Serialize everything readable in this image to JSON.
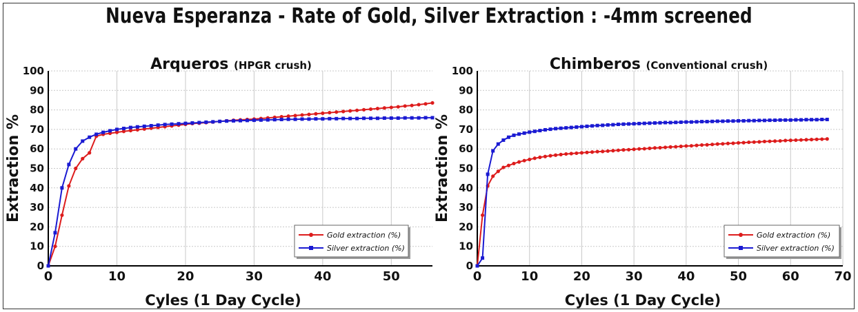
{
  "title": "Nueva Esperanza - Rate of Gold, Silver Extraction : -4mm screened",
  "colors": {
    "gold": "#dd1c1c",
    "silver": "#1a1ad2",
    "grid": "#c8c8c8"
  },
  "chart_data": [
    {
      "type": "line",
      "title": "Arqueros",
      "subtitle": "(HPGR crush)",
      "xlabel": "Cyles (1 Day Cycle)",
      "ylabel": "Extraction %",
      "xlim": [
        0,
        56
      ],
      "ylim": [
        0,
        100
      ],
      "xticks": [
        0,
        10,
        20,
        30,
        40,
        50
      ],
      "yticks": [
        0,
        10,
        20,
        30,
        40,
        50,
        60,
        70,
        80,
        90,
        100
      ],
      "grid": true,
      "legend_position": "bottom-right",
      "series": [
        {
          "name": "Gold extraction (%)",
          "color": "#dd1c1c",
          "marker": "circle",
          "x": [
            0,
            1,
            2,
            3,
            4,
            5,
            6,
            7,
            8,
            9,
            10,
            11,
            12,
            13,
            14,
            15,
            16,
            17,
            18,
            19,
            20,
            21,
            22,
            23,
            24,
            25,
            26,
            27,
            28,
            29,
            30,
            31,
            32,
            33,
            34,
            35,
            36,
            37,
            38,
            39,
            40,
            41,
            42,
            43,
            44,
            45,
            46,
            47,
            48,
            49,
            50,
            51,
            52,
            53,
            54,
            55,
            56
          ],
          "y": [
            0,
            10,
            26,
            41,
            50,
            55,
            58,
            66.5,
            67.5,
            68,
            68.5,
            69,
            69.4,
            69.8,
            70.2,
            70.6,
            71,
            71.4,
            71.8,
            72.2,
            72.6,
            73,
            73.2,
            73.5,
            73.8,
            74.1,
            74.4,
            74.7,
            74.9,
            75.1,
            75.3,
            75.6,
            75.9,
            76.2,
            76.5,
            76.8,
            77.1,
            77.4,
            77.7,
            78,
            78.3,
            78.6,
            78.9,
            79.2,
            79.5,
            79.8,
            80.1,
            80.4,
            80.7,
            81,
            81.3,
            81.6,
            82,
            82.3,
            82.7,
            83.1,
            83.6
          ]
        },
        {
          "name": "Silver extraction (%)",
          "color": "#1a1ad2",
          "marker": "square",
          "x": [
            0,
            1,
            2,
            3,
            4,
            5,
            6,
            7,
            8,
            9,
            10,
            11,
            12,
            13,
            14,
            15,
            16,
            17,
            18,
            19,
            20,
            21,
            22,
            23,
            24,
            25,
            26,
            27,
            28,
            29,
            30,
            31,
            32,
            33,
            34,
            35,
            36,
            37,
            38,
            39,
            40,
            41,
            42,
            43,
            44,
            45,
            46,
            47,
            48,
            49,
            50,
            51,
            52,
            53,
            54,
            55,
            56
          ],
          "y": [
            0,
            17,
            40,
            52,
            60,
            64,
            66,
            67.5,
            68.5,
            69.3,
            70,
            70.5,
            71,
            71.3,
            71.6,
            71.9,
            72.2,
            72.5,
            72.7,
            72.9,
            73.1,
            73.3,
            73.5,
            73.7,
            73.9,
            74.1,
            74.3,
            74.4,
            74.5,
            74.6,
            74.7,
            74.8,
            74.9,
            75,
            75.1,
            75.2,
            75.2,
            75.3,
            75.3,
            75.4,
            75.4,
            75.5,
            75.5,
            75.6,
            75.6,
            75.6,
            75.7,
            75.7,
            75.7,
            75.8,
            75.8,
            75.8,
            75.9,
            75.9,
            75.9,
            76,
            76
          ]
        }
      ]
    },
    {
      "type": "line",
      "title": "Chimberos",
      "subtitle": "(Conventional crush)",
      "xlabel": "Cyles (1 Day Cycle)",
      "ylabel": "Extraction %",
      "xlim": [
        0,
        70
      ],
      "ylim": [
        0,
        100
      ],
      "xticks": [
        0,
        10,
        20,
        30,
        40,
        50,
        60,
        70
      ],
      "yticks": [
        0,
        10,
        20,
        30,
        40,
        50,
        60,
        70,
        80,
        90,
        100
      ],
      "grid": true,
      "legend_position": "bottom-right",
      "series": [
        {
          "name": "Gold extraction (%)",
          "color": "#dd1c1c",
          "marker": "circle",
          "x": [
            0,
            1,
            2,
            3,
            4,
            5,
            6,
            7,
            8,
            9,
            10,
            11,
            12,
            13,
            14,
            15,
            16,
            17,
            18,
            19,
            20,
            21,
            22,
            23,
            24,
            25,
            26,
            27,
            28,
            29,
            30,
            31,
            32,
            33,
            34,
            35,
            36,
            37,
            38,
            39,
            40,
            41,
            42,
            43,
            44,
            45,
            46,
            47,
            48,
            49,
            50,
            51,
            52,
            53,
            54,
            55,
            56,
            57,
            58,
            59,
            60,
            61,
            62,
            63,
            64,
            65,
            66,
            67
          ],
          "y": [
            0,
            26,
            41,
            46,
            48.5,
            50.5,
            51.5,
            52.5,
            53.3,
            54,
            54.6,
            55.2,
            55.7,
            56.1,
            56.5,
            56.8,
            57.1,
            57.4,
            57.6,
            57.8,
            58,
            58.2,
            58.4,
            58.6,
            58.7,
            58.9,
            59.1,
            59.3,
            59.5,
            59.6,
            59.8,
            60,
            60.1,
            60.3,
            60.5,
            60.6,
            60.8,
            61,
            61.1,
            61.3,
            61.5,
            61.6,
            61.8,
            62,
            62.1,
            62.3,
            62.5,
            62.6,
            62.8,
            62.9,
            63.1,
            63.2,
            63.4,
            63.5,
            63.6,
            63.8,
            63.9,
            64,
            64.1,
            64.3,
            64.4,
            64.5,
            64.6,
            64.7,
            64.8,
            64.9,
            65,
            65.1
          ]
        },
        {
          "name": "Silver extraction (%)",
          "color": "#1a1ad2",
          "marker": "square",
          "x": [
            0,
            1,
            2,
            3,
            4,
            5,
            6,
            7,
            8,
            9,
            10,
            11,
            12,
            13,
            14,
            15,
            16,
            17,
            18,
            19,
            20,
            21,
            22,
            23,
            24,
            25,
            26,
            27,
            28,
            29,
            30,
            31,
            32,
            33,
            34,
            35,
            36,
            37,
            38,
            39,
            40,
            41,
            42,
            43,
            44,
            45,
            46,
            47,
            48,
            49,
            50,
            51,
            52,
            53,
            54,
            55,
            56,
            57,
            58,
            59,
            60,
            61,
            62,
            63,
            64,
            65,
            66,
            67
          ],
          "y": [
            0,
            4,
            47,
            59,
            62.5,
            64.5,
            66,
            67,
            67.6,
            68.1,
            68.6,
            69,
            69.4,
            69.8,
            70.1,
            70.4,
            70.6,
            70.8,
            71,
            71.2,
            71.4,
            71.6,
            71.8,
            72,
            72.1,
            72.3,
            72.4,
            72.6,
            72.7,
            72.8,
            72.9,
            73,
            73.1,
            73.2,
            73.3,
            73.4,
            73.5,
            73.5,
            73.6,
            73.7,
            73.8,
            73.8,
            73.9,
            74,
            74,
            74.1,
            74.2,
            74.2,
            74.3,
            74.3,
            74.4,
            74.4,
            74.5,
            74.5,
            74.6,
            74.6,
            74.7,
            74.7,
            74.8,
            74.8,
            74.8,
            74.9,
            74.9,
            75,
            75,
            75,
            75.1,
            75.1
          ]
        }
      ]
    }
  ]
}
